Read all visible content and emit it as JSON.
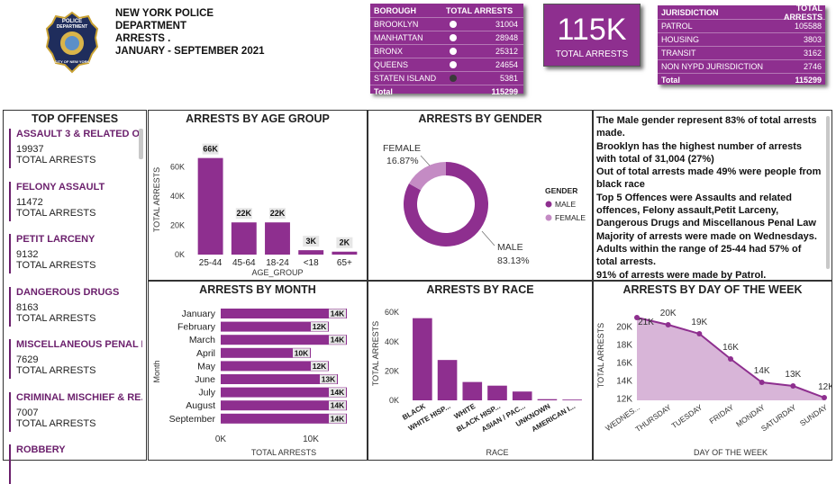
{
  "header": {
    "line1": "NEW YORK POLICE",
    "line2": "DEPARTMENT",
    "line3": "ARRESTS .",
    "line4": "JANUARY - SEPTEMBER 2021",
    "badge_text_top": "POLICE",
    "badge_text_mid": "DEPARTMENT",
    "badge_text_bottom": "CITY OF NEW YORK"
  },
  "borough_table": {
    "col1": "BOROUGH",
    "col2": "TOTAL ARRESTS",
    "rows": [
      {
        "name": "BROOKLYN",
        "value": "31004"
      },
      {
        "name": "MANHATTAN",
        "value": "28948"
      },
      {
        "name": "BRONX",
        "value": "25312"
      },
      {
        "name": "QUEENS",
        "value": "24654"
      },
      {
        "name": "STATEN ISLAND",
        "value": "5381"
      }
    ],
    "total_label": "Total",
    "total_value": "115299"
  },
  "kpi": {
    "value": "115K",
    "label": "TOTAL ARRESTS"
  },
  "jurisdiction_table": {
    "col1": "JURISDICTION",
    "col2": "TOTAL ARRESTS",
    "rows": [
      {
        "name": "PATROL",
        "value": "105588"
      },
      {
        "name": "HOUSING",
        "value": "3803"
      },
      {
        "name": "TRANSIT",
        "value": "3162"
      },
      {
        "name": "NON NYPD JURISDICTION",
        "value": "2746"
      }
    ],
    "total_label": "Total",
    "total_value": "115299"
  },
  "top_offenses": {
    "title": "TOP OFFENSES",
    "count_label": "TOTAL ARRESTS",
    "items": [
      {
        "name": "ASSAULT 3 & RELATED OF...",
        "value": "19937"
      },
      {
        "name": "FELONY ASSAULT",
        "value": "11472"
      },
      {
        "name": "PETIT LARCENY",
        "value": "9132"
      },
      {
        "name": "DANGEROUS DRUGS",
        "value": "8163"
      },
      {
        "name": "MISCELLANEOUS PENAL L...",
        "value": "7629"
      },
      {
        "name": "CRIMINAL MISCHIEF & RE...",
        "value": "7007"
      },
      {
        "name": "ROBBERY",
        "value": ""
      }
    ]
  },
  "insights": {
    "lines": [
      "The Male gender represent 83% of total arrests made.",
      "Brooklyn has the highest number of arrests with total of 31,004 (27%)",
      "Out of total arrests made 49% were people from black race",
      "Top 5 Offences were Assaults and related offences, Felony assault,Petit Larceny, Dangerous Drugs and Miscellanous Penal Law",
      "Majority of arrests were made on  Wednesdays.",
      "Adults within the range of 25-44 had 57% of total arrests.",
      "91% of arrests were made by Patrol."
    ]
  },
  "colors": {
    "accent": "#8e2f8f",
    "accent_light": "#c48bc4",
    "accent_dark": "#6b1f6c",
    "area_fill": "#d8b5d8"
  },
  "chart_data": [
    {
      "id": "age",
      "type": "bar",
      "title": "ARRESTS BY AGE GROUP",
      "xlabel": "AGE_GROUP",
      "ylabel": "TOTAL ARRESTS",
      "categories": [
        "25-44",
        "45-64",
        "18-24",
        "<18",
        "65+"
      ],
      "values": [
        66000,
        22000,
        22000,
        3000,
        2000
      ],
      "data_labels": [
        "66K",
        "22K",
        "22K",
        "3K",
        "2K"
      ],
      "yticks": [
        "0K",
        "20K",
        "40K",
        "60K"
      ],
      "ylim": [
        0,
        75000
      ]
    },
    {
      "id": "gender",
      "type": "pie",
      "title": "ARRESTS BY GENDER",
      "legend_title": "GENDER",
      "categories": [
        "MALE",
        "FEMALE"
      ],
      "values": [
        83.13,
        16.87
      ],
      "data_labels": [
        "83.13%",
        "16.87%"
      ]
    },
    {
      "id": "month",
      "type": "bar",
      "orientation": "horizontal",
      "title": "ARRESTS BY MONTH",
      "xlabel": "TOTAL ARRESTS",
      "ylabel": "Month",
      "categories": [
        "January",
        "February",
        "March",
        "April",
        "May",
        "June",
        "July",
        "August",
        "September"
      ],
      "values": [
        14000,
        12000,
        14000,
        10000,
        12000,
        13000,
        14000,
        14000,
        14000
      ],
      "data_labels": [
        "14K",
        "12K",
        "14K",
        "10K",
        "12K",
        "13K",
        "14K",
        "14K",
        "14K"
      ],
      "xticks": [
        "0K",
        "10K"
      ],
      "xlim": [
        0,
        14000
      ]
    },
    {
      "id": "race",
      "type": "bar",
      "title": "ARRESTS BY RACE",
      "xlabel": "RACE",
      "ylabel": "TOTAL ARRESTS",
      "categories": [
        "BLACK",
        "WHITE HISP...",
        "WHITE",
        "BLACK HISP...",
        "ASIAN / PAC...",
        "UNKNOWN",
        "AMERICAN I..."
      ],
      "values": [
        56000,
        27500,
        12500,
        10000,
        6000,
        800,
        500
      ],
      "yticks": [
        "0K",
        "20K",
        "40K",
        "60K"
      ],
      "ylim": [
        0,
        65000
      ]
    },
    {
      "id": "day",
      "type": "area",
      "title": "ARRESTS BY DAY OF THE WEEK",
      "xlabel": "DAY OF THE WEEK",
      "ylabel": "TOTAL ARRESTS",
      "categories": [
        "WEDNES...",
        "THURSDAY",
        "TUESDAY",
        "FRIDAY",
        "MONDAY",
        "SATURDAY",
        "SUNDAY"
      ],
      "values": [
        21000,
        20200,
        19200,
        16400,
        13800,
        13400,
        12100
      ],
      "data_labels": [
        "21K",
        "20K",
        "19K",
        "16K",
        "14K",
        "13K",
        "12K"
      ],
      "yticks": [
        "12K",
        "14K",
        "16K",
        "18K",
        "20K"
      ],
      "ylim": [
        11800,
        21200
      ]
    }
  ]
}
